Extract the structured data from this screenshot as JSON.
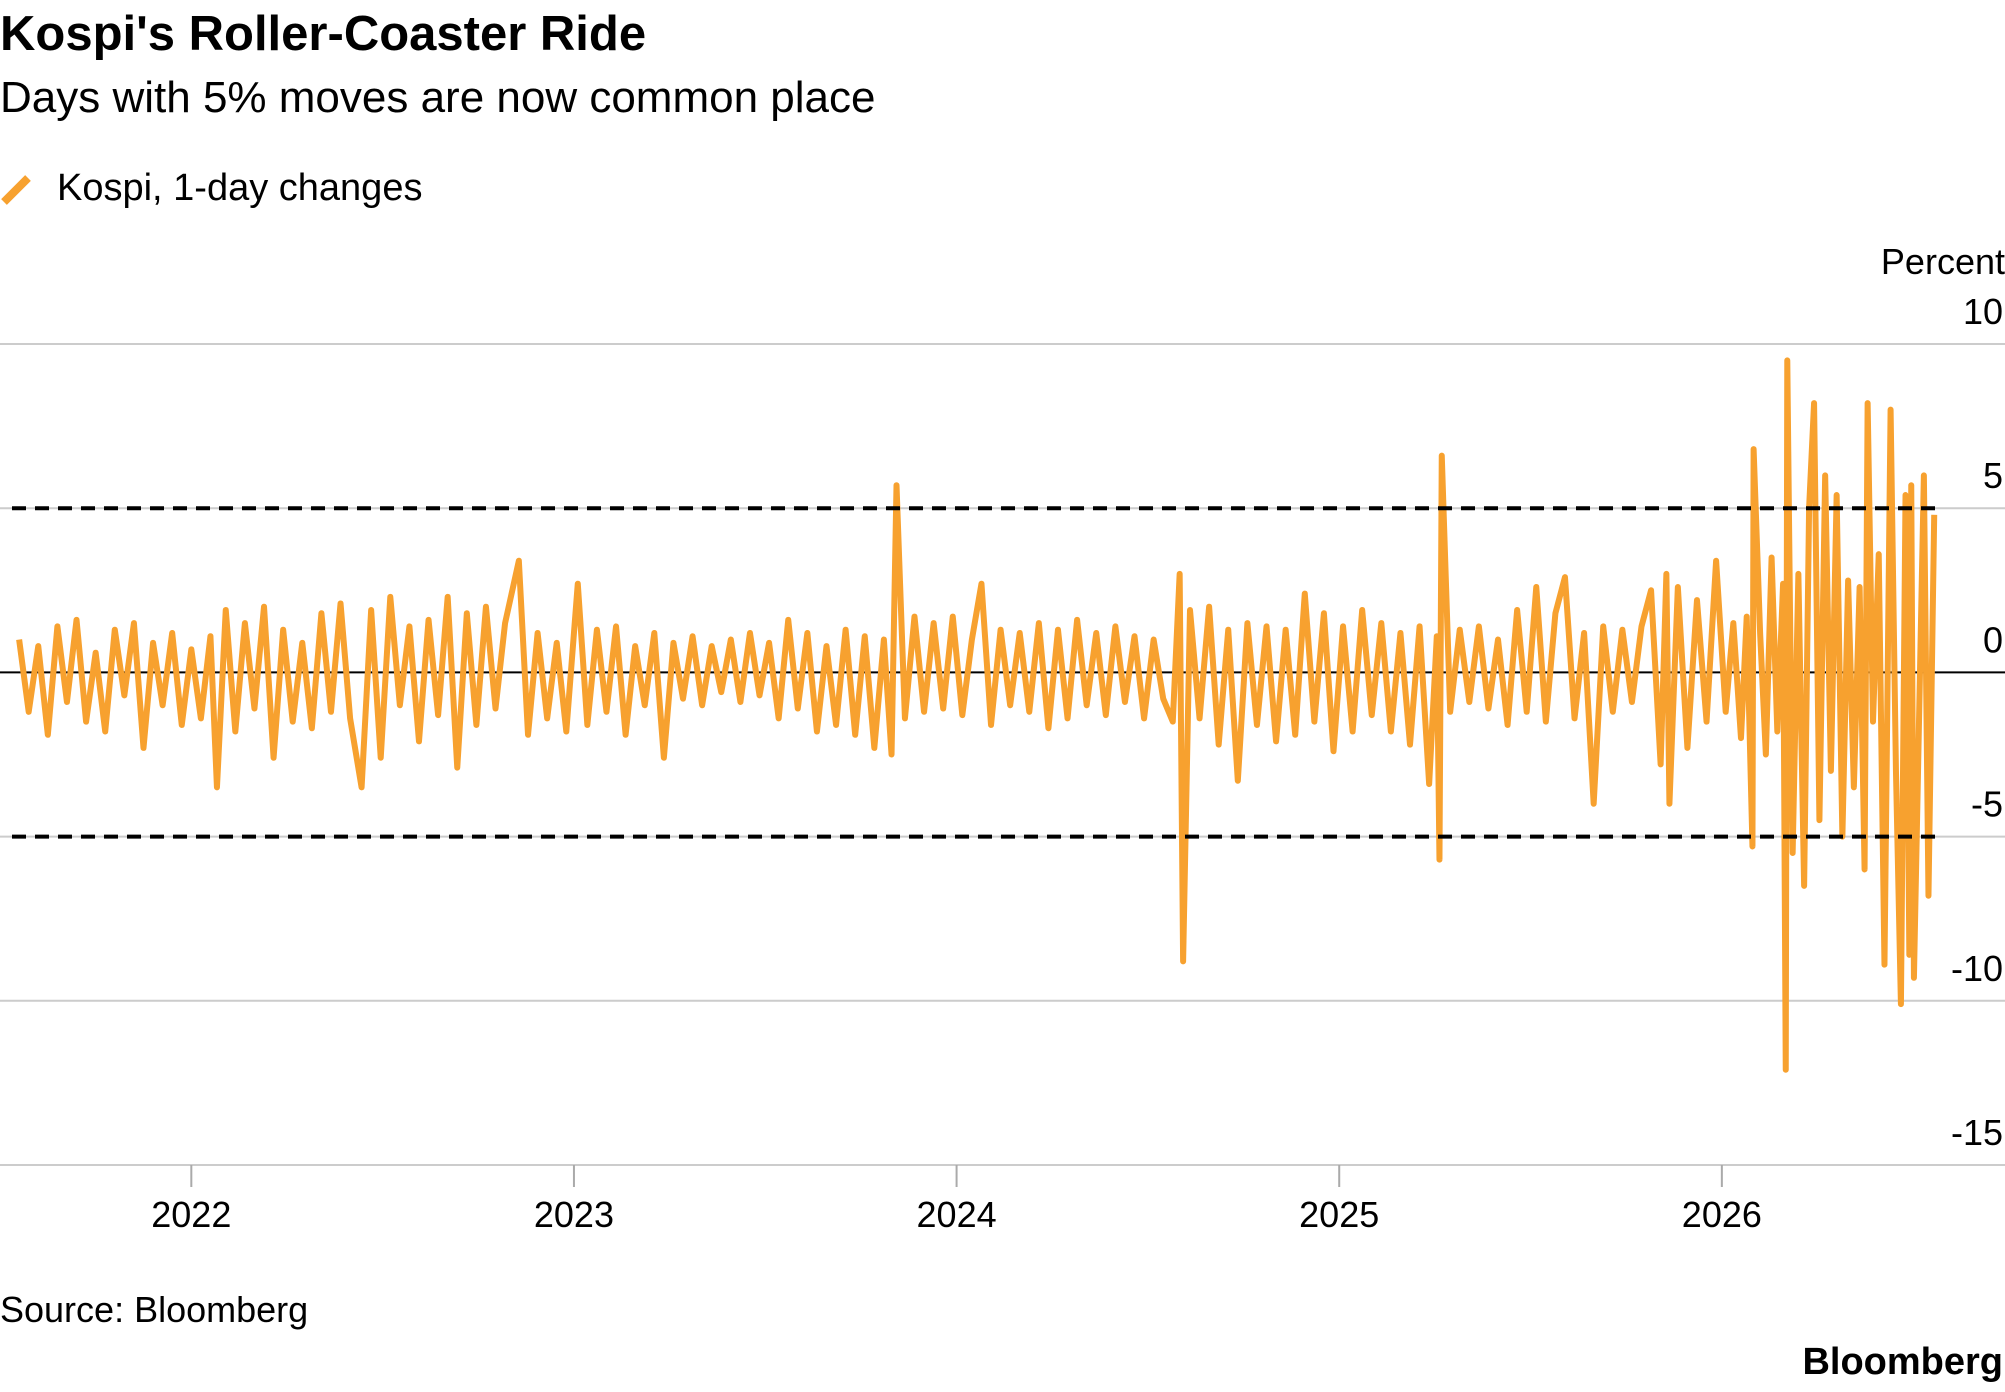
{
  "chart_data": {
    "type": "line",
    "title": "Kospi's Roller-Coaster Ride",
    "subtitle": "Days with 5% moves are now common place",
    "y_axis_label": "Percent",
    "source": "Source: Bloomberg",
    "brand": "Bloomberg",
    "xlim": [
      2021.5,
      2026.74
    ],
    "xticks": [
      2022,
      2023,
      2024,
      2025,
      2026
    ],
    "ylim": [
      -15,
      10
    ],
    "yticks": [
      -15,
      -10,
      -5,
      0,
      5,
      10
    ],
    "grid": true,
    "reference_lines": [
      5,
      -5
    ],
    "x": [
      2021.55,
      2021.575,
      2021.6,
      2021.625,
      2021.65,
      2021.675,
      2021.7,
      2021.725,
      2021.75,
      2021.775,
      2021.8,
      2021.825,
      2021.85,
      2021.875,
      2021.9,
      2021.925,
      2021.95,
      2021.975,
      2022.0,
      2022.025,
      2022.05,
      2022.067,
      2022.09,
      2022.115,
      2022.14,
      2022.165,
      2022.19,
      2022.215,
      2022.24,
      2022.265,
      2022.29,
      2022.315,
      2022.34,
      2022.365,
      2022.39,
      2022.415,
      2022.445,
      2022.47,
      2022.495,
      2022.52,
      2022.545,
      2022.57,
      2022.595,
      2022.62,
      2022.645,
      2022.67,
      2022.695,
      2022.72,
      2022.745,
      2022.77,
      2022.795,
      2022.82,
      2022.856,
      2022.88,
      2022.905,
      2022.93,
      2022.955,
      2022.98,
      2023.01,
      2023.035,
      2023.06,
      2023.085,
      2023.11,
      2023.135,
      2023.16,
      2023.185,
      2023.21,
      2023.235,
      2023.26,
      2023.285,
      2023.31,
      2023.335,
      2023.36,
      2023.385,
      2023.41,
      2023.435,
      2023.46,
      2023.485,
      2023.51,
      2023.535,
      2023.56,
      2023.585,
      2023.61,
      2023.635,
      2023.66,
      2023.685,
      2023.71,
      2023.735,
      2023.76,
      2023.785,
      2023.81,
      2023.83,
      2023.843,
      2023.865,
      2023.89,
      2023.915,
      2023.94,
      2023.965,
      2023.99,
      2024.015,
      2024.04,
      2024.065,
      2024.09,
      2024.115,
      2024.14,
      2024.165,
      2024.19,
      2024.215,
      2024.24,
      2024.265,
      2024.29,
      2024.315,
      2024.34,
      2024.365,
      2024.39,
      2024.415,
      2024.44,
      2024.465,
      2024.49,
      2024.515,
      2024.54,
      2024.565,
      2024.583,
      2024.592,
      2024.61,
      2024.635,
      2024.66,
      2024.685,
      2024.71,
      2024.735,
      2024.76,
      2024.785,
      2024.81,
      2024.835,
      2024.86,
      2024.885,
      2024.91,
      2024.935,
      2024.96,
      2024.985,
      2025.01,
      2025.035,
      2025.06,
      2025.085,
      2025.11,
      2025.135,
      2025.16,
      2025.185,
      2025.21,
      2025.235,
      2025.255,
      2025.262,
      2025.268,
      2025.29,
      2025.315,
      2025.34,
      2025.365,
      2025.39,
      2025.415,
      2025.44,
      2025.465,
      2025.49,
      2025.515,
      2025.54,
      2025.565,
      2025.59,
      2025.615,
      2025.64,
      2025.665,
      2025.69,
      2025.715,
      2025.74,
      2025.765,
      2025.79,
      2025.815,
      2025.84,
      2025.855,
      2025.863,
      2025.885,
      2025.91,
      2025.935,
      2025.96,
      2025.985,
      2026.01,
      2026.03,
      2026.05,
      2026.065,
      2026.08,
      2026.083,
      2026.1,
      2026.115,
      2026.13,
      2026.145,
      2026.16,
      2026.167,
      2026.171,
      2026.185,
      2026.2,
      2026.215,
      2026.228,
      2026.241,
      2026.255,
      2026.27,
      2026.285,
      2026.3,
      2026.315,
      2026.33,
      2026.345,
      2026.36,
      2026.373,
      2026.381,
      2026.395,
      2026.41,
      2026.425,
      2026.441,
      2026.455,
      2026.468,
      2026.48,
      2026.49,
      2026.495,
      2026.502,
      2026.528,
      2026.54,
      2026.555
    ],
    "series": [
      {
        "name": "Kospi, 1-day changes",
        "color": "#f7a12f",
        "values": [
          1.0,
          -1.2,
          0.8,
          -1.9,
          1.4,
          -0.9,
          1.6,
          -1.5,
          0.6,
          -1.8,
          1.3,
          -0.7,
          1.5,
          -2.3,
          0.9,
          -1.0,
          1.2,
          -1.6,
          0.7,
          -1.4,
          1.1,
          -3.5,
          1.9,
          -1.8,
          1.5,
          -1.1,
          2.0,
          -2.6,
          1.3,
          -1.5,
          0.9,
          -1.7,
          1.8,
          -1.2,
          2.1,
          -1.4,
          -3.5,
          1.9,
          -2.6,
          2.3,
          -1.0,
          1.4,
          -2.1,
          1.6,
          -1.3,
          2.3,
          -2.9,
          1.8,
          -1.6,
          2.0,
          -1.1,
          1.5,
          3.4,
          -1.9,
          1.2,
          -1.4,
          0.9,
          -1.8,
          2.7,
          -1.6,
          1.3,
          -1.2,
          1.4,
          -1.9,
          0.8,
          -1.0,
          1.2,
          -2.6,
          0.9,
          -0.8,
          1.1,
          -1.0,
          0.8,
          -0.6,
          1.0,
          -0.9,
          1.2,
          -0.7,
          0.9,
          -1.4,
          1.6,
          -1.1,
          1.2,
          -1.8,
          0.8,
          -1.6,
          1.3,
          -1.9,
          1.1,
          -2.3,
          1.0,
          -2.5,
          5.7,
          -1.4,
          1.7,
          -1.2,
          1.5,
          -1.1,
          1.7,
          -1.3,
          1.0,
          2.7,
          -1.6,
          1.3,
          -1.0,
          1.2,
          -1.2,
          1.5,
          -1.7,
          1.3,
          -1.4,
          1.6,
          -1.0,
          1.2,
          -1.3,
          1.4,
          -0.9,
          1.1,
          -1.4,
          1.0,
          -0.8,
          -1.5,
          3.0,
          -8.8,
          1.9,
          -1.4,
          2.0,
          -2.2,
          1.3,
          -3.3,
          1.5,
          -1.6,
          1.4,
          -2.1,
          1.3,
          -1.9,
          2.4,
          -1.5,
          1.8,
          -2.4,
          1.4,
          -1.8,
          1.9,
          -1.3,
          1.5,
          -1.8,
          1.2,
          -2.2,
          1.4,
          -3.4,
          1.1,
          -5.7,
          6.6,
          -1.2,
          1.3,
          -0.9,
          1.4,
          -1.1,
          1.0,
          -1.6,
          1.9,
          -1.2,
          2.6,
          -1.5,
          1.8,
          2.9,
          -1.4,
          1.2,
          -4.0,
          1.4,
          -1.2,
          1.3,
          -0.9,
          1.4,
          2.5,
          -2.8,
          3.0,
          -4.0,
          2.6,
          -2.3,
          2.2,
          -1.5,
          3.4,
          -1.2,
          1.5,
          -2.0,
          1.7,
          -5.3,
          6.8,
          1.2,
          -2.5,
          3.5,
          -1.8,
          2.7,
          -12.1,
          9.5,
          -5.5,
          3.0,
          -6.5,
          5.0,
          8.2,
          -4.5,
          6.0,
          -3.0,
          5.4,
          -5.0,
          2.8,
          -3.5,
          2.6,
          -6.0,
          8.2,
          -1.5,
          3.6,
          -8.9,
          8.0,
          -3.0,
          -10.1,
          5.4,
          -8.6,
          5.7,
          -9.3,
          6.0,
          -6.8,
          4.8
        ]
      }
    ]
  }
}
